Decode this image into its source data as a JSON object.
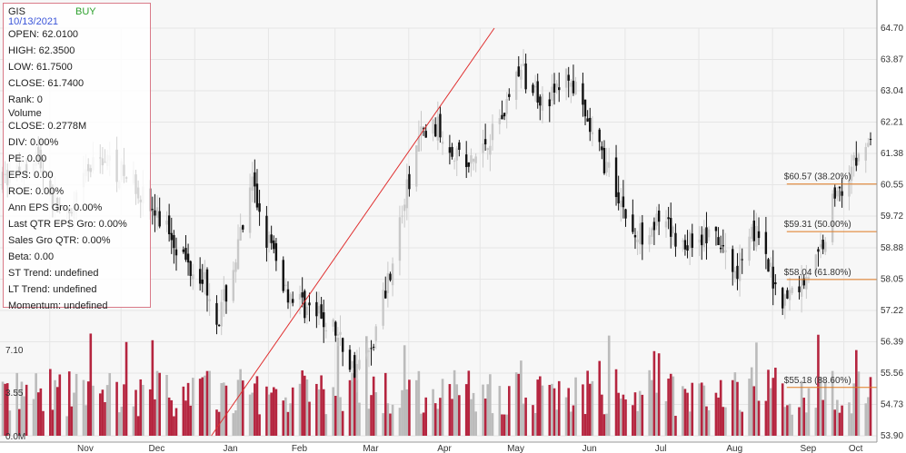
{
  "info_panel": {
    "ticker": "GIS",
    "signal": "BUY",
    "date": "10/13/2021",
    "open": "OPEN: 62.0100",
    "high": "HIGH: 62.3500",
    "low": "LOW: 61.7500",
    "close": "CLOSE: 61.7400",
    "rank": "Rank: 0",
    "volume_label": "Volume",
    "volume_close": "CLOSE: 0.2778M",
    "div": "DIV: 0.00%",
    "pe": "PE: 0.00",
    "eps": "EPS: 0.00",
    "roe": "ROE: 0.00%",
    "ann_eps_gro": "Ann EPS Gro: 0.00%",
    "last_qtr_eps_gro": "Last QTR EPS Gro: 0.00%",
    "sales_gro_qtr": "Sales Gro QTR: 0.00%",
    "beta": "Beta: 0.00",
    "st_trend": "ST Trend: undefined",
    "lt_trend": "LT Trend: undefined",
    "momentum": "Momentum: undefined"
  },
  "colors": {
    "up_candle": "#c8c8c8",
    "down_candle": "#111111",
    "volume_up": "#bbbbbb",
    "volume_down": "#b5253f",
    "trendline": "#e03030",
    "fib_line": "#e07a20",
    "grid": "#e6e6e6",
    "price_bg": "#f7f7f7"
  },
  "chart_data": {
    "type": "candlestick",
    "price_axis": {
      "ticks": [
        "64.70",
        "63.87",
        "63.04",
        "62.21",
        "61.38",
        "60.55",
        "59.72",
        "58.88",
        "58.05",
        "57.22",
        "56.39",
        "55.56",
        "54.73",
        "53.90"
      ],
      "ylim": [
        53.9,
        64.7
      ]
    },
    "volume_axis": {
      "ticks": [
        "7.10",
        "3.55",
        "0.0M"
      ],
      "ylim": [
        0,
        10.6
      ]
    },
    "x_axis": {
      "labels": [
        "Nov",
        "Dec",
        "Jan",
        "Feb",
        "Mar",
        "Apr",
        "May",
        "Jun",
        "Jul",
        "Aug",
        "Sep",
        "Oct"
      ]
    },
    "trendline": {
      "start": [
        "2021-01-08",
        53.9
      ],
      "end": [
        "2021-05-07",
        64.7
      ]
    },
    "fibonacci_levels": [
      {
        "price": 60.57,
        "label": "$60.57 (38.20%)"
      },
      {
        "price": 59.31,
        "label": "$59.31 (50.00%)"
      },
      {
        "price": 58.04,
        "label": "$58.04 (61.80%)"
      },
      {
        "price": 55.18,
        "label": "$55.18 (88.60%)"
      }
    ],
    "price_anchors": [
      [
        "2020-10-13",
        60.6
      ],
      [
        "2020-10-20",
        61.0
      ],
      [
        "2020-10-27",
        61.4
      ],
      [
        "2020-11-03",
        60.2
      ],
      [
        "2020-11-10",
        59.5
      ],
      [
        "2020-11-17",
        60.8
      ],
      [
        "2020-11-24",
        61.3
      ],
      [
        "2020-12-01",
        60.9
      ],
      [
        "2020-12-08",
        60.6
      ],
      [
        "2020-12-15",
        59.8
      ],
      [
        "2020-12-22",
        59.4
      ],
      [
        "2020-12-29",
        58.5
      ],
      [
        "2021-01-05",
        58.2
      ],
      [
        "2021-01-12",
        57.0
      ],
      [
        "2021-01-19",
        58.6
      ],
      [
        "2021-01-26",
        60.5
      ],
      [
        "2021-02-02",
        59.0
      ],
      [
        "2021-02-09",
        57.8
      ],
      [
        "2021-02-16",
        57.4
      ],
      [
        "2021-02-23",
        57.0
      ],
      [
        "2021-03-02",
        56.7
      ],
      [
        "2021-03-09",
        55.7
      ],
      [
        "2021-03-16",
        56.0
      ],
      [
        "2021-03-23",
        57.8
      ],
      [
        "2021-03-30",
        59.8
      ],
      [
        "2021-04-06",
        61.8
      ],
      [
        "2021-04-13",
        62.1
      ],
      [
        "2021-04-20",
        61.6
      ],
      [
        "2021-04-27",
        61.0
      ],
      [
        "2021-05-04",
        61.7
      ],
      [
        "2021-05-11",
        62.4
      ],
      [
        "2021-05-18",
        63.6
      ],
      [
        "2021-05-25",
        63.0
      ],
      [
        "2021-06-01",
        62.9
      ],
      [
        "2021-06-08",
        63.5
      ],
      [
        "2021-06-15",
        62.2
      ],
      [
        "2021-06-22",
        61.3
      ],
      [
        "2021-06-29",
        60.3
      ],
      [
        "2021-07-06",
        59.1
      ],
      [
        "2021-07-13",
        59.6
      ],
      [
        "2021-07-20",
        59.3
      ],
      [
        "2021-07-27",
        59.0
      ],
      [
        "2021-08-03",
        59.2
      ],
      [
        "2021-08-10",
        59.0
      ],
      [
        "2021-08-17",
        58.2
      ],
      [
        "2021-08-24",
        59.5
      ],
      [
        "2021-08-31",
        58.3
      ],
      [
        "2021-09-07",
        57.5
      ],
      [
        "2021-09-14",
        58.0
      ],
      [
        "2021-09-21",
        58.6
      ],
      [
        "2021-09-28",
        60.3
      ],
      [
        "2021-10-05",
        61.0
      ],
      [
        "2021-10-13",
        61.74
      ]
    ],
    "volume_avg": 3.6
  }
}
